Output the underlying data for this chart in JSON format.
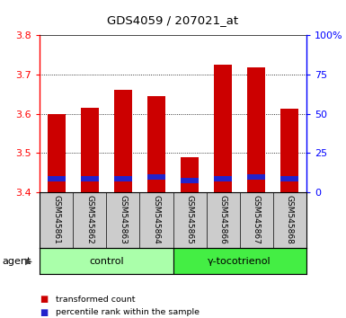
{
  "title": "GDS4059 / 207021_at",
  "samples": [
    "GSM545861",
    "GSM545862",
    "GSM545863",
    "GSM545864",
    "GSM545865",
    "GSM545866",
    "GSM545867",
    "GSM545868"
  ],
  "groups": [
    {
      "label": "control",
      "indices": [
        0,
        1,
        2,
        3
      ],
      "color": "#aaffaa"
    },
    {
      "label": "γ-tocotrienol",
      "indices": [
        4,
        5,
        6,
        7
      ],
      "color": "#44ee44"
    }
  ],
  "red_values": [
    3.6,
    3.615,
    3.66,
    3.645,
    3.49,
    3.725,
    3.718,
    3.612
  ],
  "blue_top_pct": [
    10.5,
    10.5,
    10.5,
    11.5,
    9.5,
    10.5,
    11.5,
    10.5
  ],
  "blue_height_pct": [
    3.5,
    3.5,
    3.5,
    3.5,
    3.5,
    3.5,
    3.5,
    3.5
  ],
  "ylim_left": [
    3.4,
    3.8
  ],
  "ylim_right": [
    0,
    100
  ],
  "yticks_left": [
    3.4,
    3.5,
    3.6,
    3.7,
    3.8
  ],
  "yticks_right": [
    0,
    25,
    50,
    75,
    100
  ],
  "ytick_labels_right": [
    "0",
    "25",
    "50",
    "75",
    "100%"
  ],
  "bar_width": 0.55,
  "red_color": "#cc0000",
  "blue_color": "#2222cc",
  "ybase": 3.4,
  "agent_label": "agent",
  "legend_red": "transformed count",
  "legend_blue": "percentile rank within the sample",
  "plot_bg": "#ffffff",
  "tick_area_bg": "#cccccc",
  "grid_lines": [
    3.5,
    3.6,
    3.7
  ]
}
